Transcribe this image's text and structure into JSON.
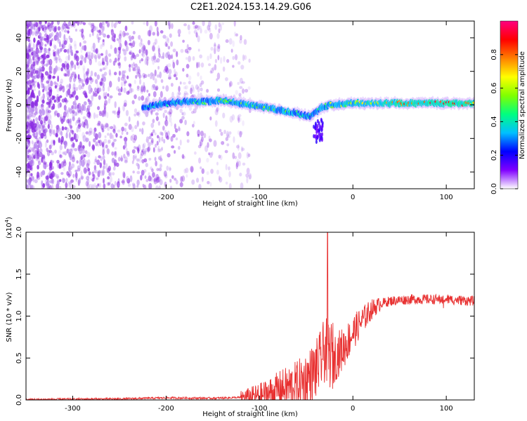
{
  "figure_title": "C2E1.2024.153.14.29.G06",
  "chart_data": [
    {
      "type": "heatmap",
      "xlabel": "Height of straight line (km)",
      "ylabel": "Frequency (Hz)",
      "xlim": [
        -350,
        130
      ],
      "ylim": [
        -50,
        50
      ],
      "xticks": [
        -300,
        -200,
        -100,
        0,
        100
      ],
      "yticks": [
        -40,
        -20,
        0,
        20,
        40
      ],
      "colorbar": {
        "label": "Normalized spectral amplitude",
        "range": [
          0.0,
          1.0
        ],
        "ticks": [
          0.0,
          0.2,
          0.4,
          0.6,
          0.8
        ],
        "tick_labels": [
          "0.0",
          "0.2",
          "0.4",
          "0.6",
          "0.8"
        ],
        "colors": [
          "#ffffff",
          "#8000ff",
          "#0000ff",
          "#00c0ff",
          "#00ff80",
          "#80ff00",
          "#ffff00",
          "#ff8000",
          "#ff0000",
          "#ff0080"
        ]
      },
      "noise_region_x": [
        -350,
        -120
      ],
      "ridge": {
        "x": [
          -225,
          -210,
          -200,
          -180,
          -160,
          -140,
          -120,
          -100,
          -80,
          -60,
          -45,
          -35,
          -25,
          0,
          25,
          50,
          75,
          100,
          130
        ],
        "y": [
          -2,
          0,
          1,
          2,
          2,
          3,
          1,
          -1,
          -3,
          -5,
          -7,
          -2,
          0,
          1,
          1,
          1,
          1,
          1,
          1
        ],
        "amplitude": [
          0.3,
          0.3,
          0.32,
          0.35,
          0.4,
          0.42,
          0.45,
          0.5,
          0.45,
          0.4,
          0.35,
          0.4,
          0.5,
          0.55,
          0.65,
          0.75,
          0.8,
          0.85,
          0.75
        ]
      }
    },
    {
      "type": "line",
      "xlabel": "Height of straight line (km)",
      "ylabel": "SNR (10 * v/v)",
      "y_multiplier": "(x10",
      "y_multiplier_exp": "4",
      "y_multiplier_close": ")",
      "xlim": [
        -350,
        130
      ],
      "ylim": [
        0.0,
        2.0
      ],
      "xticks": [
        -300,
        -200,
        -100,
        0,
        100
      ],
      "yticks": [
        0.0,
        0.5,
        1.0,
        1.5,
        2.0
      ],
      "ytick_labels": [
        "0.0",
        "0.5",
        "1.0",
        "1.5",
        "2.0"
      ],
      "series": [
        {
          "color": "#e83030",
          "x": [
            -350,
            -300,
            -250,
            -220,
            -200,
            -150,
            -120,
            -100,
            -90,
            -80,
            -70,
            -60,
            -50,
            -40,
            -35,
            -30,
            -25,
            -20,
            -10,
            0,
            10,
            20,
            30,
            40,
            60,
            80,
            100,
            130
          ],
          "y": [
            0.005,
            0.01,
            0.012,
            0.02,
            0.025,
            0.02,
            0.03,
            0.05,
            0.08,
            0.12,
            0.15,
            0.18,
            0.25,
            0.35,
            0.45,
            0.6,
            0.55,
            0.5,
            0.62,
            0.8,
            0.95,
            1.08,
            1.15,
            1.18,
            1.2,
            1.2,
            1.2,
            1.18
          ],
          "peak": {
            "x": -27,
            "y": 2.0
          }
        }
      ]
    }
  ]
}
